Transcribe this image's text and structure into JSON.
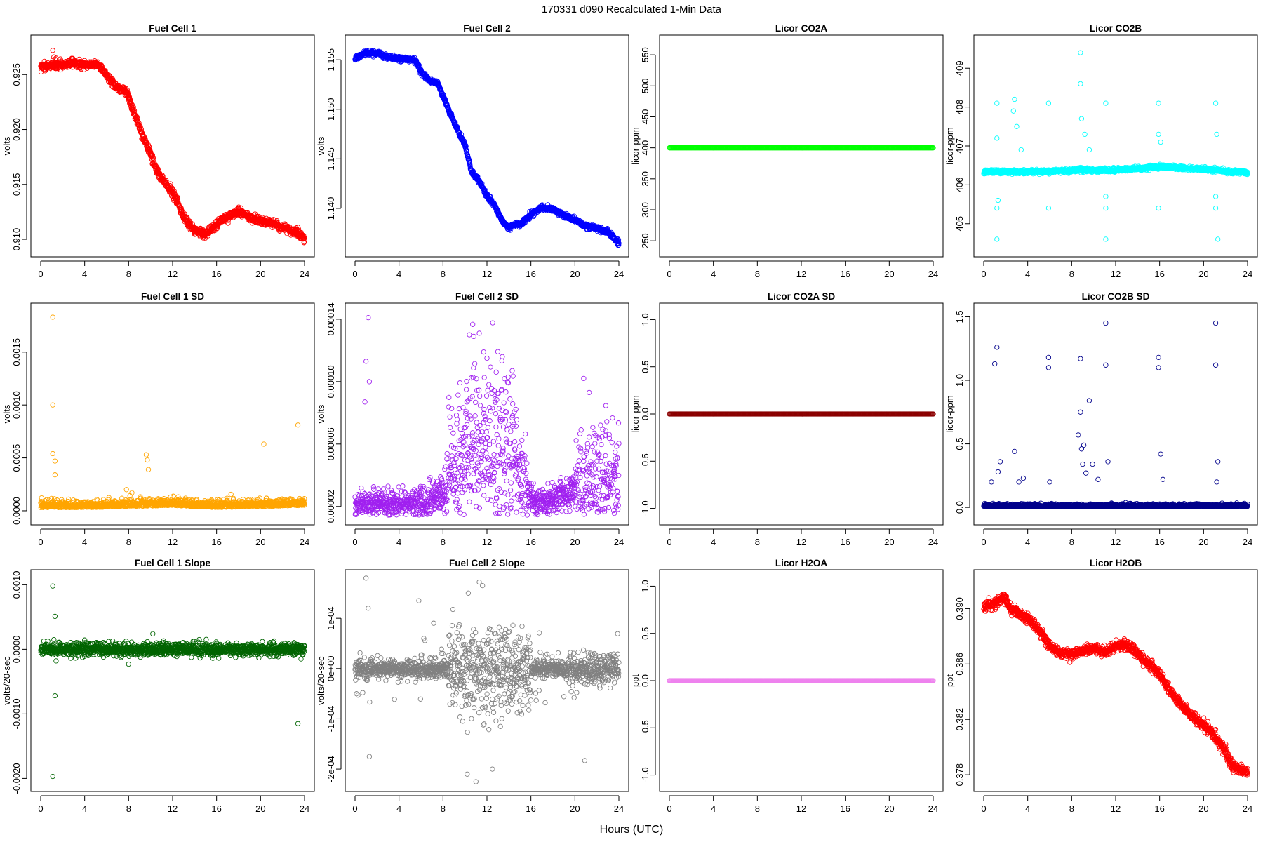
{
  "figure": {
    "title": "170331    d090    Recalculated 1-Min Data",
    "xlabel": "Hours (UTC)"
  },
  "chart_data": [
    {
      "id": "fc1",
      "type": "scatter",
      "title": "Fuel Cell 1",
      "ylabel": "volts",
      "color": "#ff0000",
      "xlim": [
        0,
        24
      ],
      "xticks": [
        0,
        4,
        8,
        12,
        16,
        20,
        24
      ],
      "xtick_labels": [
        "0",
        "4",
        "8",
        "12",
        "16",
        "20",
        "24"
      ],
      "ylim": [
        0.9093,
        0.9277
      ],
      "yticks": [
        0.91,
        0.915,
        0.92,
        0.925
      ],
      "ytick_labels": [
        "0.910",
        "0.915",
        "0.920",
        "0.925"
      ],
      "series": [
        {
          "name": "Fuel Cell 1",
          "x": [
            0,
            2,
            3,
            4,
            5.3,
            6,
            7,
            7.8,
            8.5,
            9.3,
            10,
            10.6,
            11.5,
            12.3,
            13,
            14,
            15,
            16.5,
            18,
            19.5,
            21,
            22.5,
            23.5,
            24
          ],
          "y": [
            0.9257,
            0.9259,
            0.9261,
            0.9259,
            0.9259,
            0.9249,
            0.9238,
            0.9235,
            0.9215,
            0.9193,
            0.9178,
            0.9161,
            0.9149,
            0.9138,
            0.912,
            0.9108,
            0.9105,
            0.9118,
            0.9125,
            0.9118,
            0.9115,
            0.9109,
            0.9105,
            0.9099
          ]
        }
      ],
      "outliers": {
        "x": [
          1.1,
          1.2,
          1.3,
          1.1,
          1.4,
          23.4
        ],
        "y": [
          0.9272,
          0.9266,
          0.9264,
          0.9263,
          0.9265,
          0.9111
        ]
      }
    },
    {
      "id": "fc2",
      "type": "scatter",
      "title": "Fuel Cell 2",
      "ylabel": "volts",
      "color": "#0000ff",
      "xlim": [
        0,
        24
      ],
      "xticks": [
        0,
        4,
        8,
        12,
        16,
        20,
        24
      ],
      "xtick_labels": [
        "0",
        "4",
        "8",
        "12",
        "16",
        "20",
        "24"
      ],
      "ylim": [
        1.1361,
        1.1565
      ],
      "yticks": [
        1.14,
        1.145,
        1.15,
        1.155
      ],
      "ytick_labels": [
        "1.140",
        "1.145",
        "1.150",
        "1.155"
      ],
      "series": [
        {
          "name": "Fuel Cell 2",
          "x": [
            0,
            1,
            2,
            3,
            4,
            5,
            5.5,
            6,
            6.8,
            7.5,
            8.5,
            9.3,
            10,
            10.6,
            11.3,
            12,
            12.7,
            13.5,
            14,
            14.5,
            15,
            16,
            17,
            18,
            19,
            20,
            21,
            22,
            23,
            24
          ],
          "y": [
            1.1551,
            1.1557,
            1.1556,
            1.1553,
            1.1551,
            1.155,
            1.1549,
            1.1538,
            1.1529,
            1.1527,
            1.15,
            1.148,
            1.1464,
            1.1437,
            1.1427,
            1.1413,
            1.1403,
            1.1385,
            1.138,
            1.1384,
            1.1383,
            1.1394,
            1.1401,
            1.1399,
            1.1393,
            1.1388,
            1.1382,
            1.138,
            1.1376,
            1.1365
          ]
        }
      ],
      "outliers": {
        "x": [],
        "y": []
      }
    },
    {
      "id": "co2a",
      "type": "scatter",
      "title": "Licor CO2A",
      "ylabel": "licor-ppm",
      "color": "#00ff00",
      "xlim": [
        0,
        24
      ],
      "xticks": [
        0,
        4,
        8,
        12,
        16,
        20,
        24
      ],
      "xtick_labels": [
        "0",
        "4",
        "8",
        "12",
        "16",
        "20",
        "24"
      ],
      "ylim": [
        240,
        566
      ],
      "yticks": [
        250,
        300,
        350,
        400,
        450,
        500,
        550
      ],
      "ytick_labels": [
        "250",
        "300",
        "350",
        "400",
        "450",
        "500",
        "550"
      ],
      "series": [
        {
          "name": "Licor CO2A",
          "x": [
            0,
            24
          ],
          "y": [
            400,
            400
          ]
        }
      ],
      "outliers": {
        "x": [],
        "y": []
      }
    },
    {
      "id": "co2b",
      "type": "scatter",
      "title": "Licor CO2B",
      "ylabel": "licor-ppm",
      "color": "#00ffff",
      "xlim": [
        0,
        24
      ],
      "xticks": [
        0,
        4,
        8,
        12,
        16,
        20,
        24
      ],
      "xtick_labels": [
        "0",
        "4",
        "8",
        "12",
        "16",
        "20",
        "24"
      ],
      "ylim": [
        404.4,
        409.6
      ],
      "yticks": [
        405,
        406,
        407,
        408,
        409
      ],
      "ytick_labels": [
        "405",
        "406",
        "407",
        "408",
        "409"
      ],
      "series": [
        {
          "name": "Licor CO2B",
          "x": [
            0,
            2,
            4,
            6,
            8,
            9,
            10,
            12,
            14,
            16,
            18,
            20,
            22,
            24
          ],
          "y": [
            406.33,
            406.34,
            406.33,
            406.35,
            406.38,
            406.4,
            406.37,
            406.38,
            406.42,
            406.47,
            406.43,
            406.4,
            406.35,
            406.32
          ]
        }
      ],
      "outliers": {
        "x": [
          1.2,
          1.2,
          1.2,
          1.2,
          1.3,
          2.7,
          2.8,
          3.0,
          3.4,
          5.9,
          5.9,
          8.8,
          8.8,
          8.9,
          9.2,
          9.6,
          11.1,
          11.1,
          11.1,
          11.1,
          15.9,
          15.9,
          15.9,
          16.1,
          21.1,
          21.1,
          21.1,
          21.2,
          21.3
        ],
        "y": [
          408.1,
          405.4,
          404.6,
          407.2,
          405.6,
          407.9,
          408.2,
          407.5,
          406.9,
          408.1,
          405.4,
          409.4,
          408.6,
          407.7,
          407.3,
          406.9,
          408.1,
          405.4,
          404.6,
          405.7,
          408.1,
          405.4,
          407.3,
          407.1,
          408.1,
          405.4,
          405.7,
          407.3,
          404.6
        ]
      }
    },
    {
      "id": "fc1sd",
      "type": "scatter",
      "title": "Fuel Cell 1 SD",
      "ylabel": "volts",
      "color": "#ffa500",
      "xlim": [
        0,
        24
      ],
      "xticks": [
        0,
        4,
        8,
        12,
        16,
        20,
        24
      ],
      "xtick_labels": [
        "0",
        "4",
        "8",
        "12",
        "16",
        "20",
        "24"
      ],
      "ylim": [
        -4e-05,
        0.00187
      ],
      "yticks": [
        0.0,
        0.0005,
        0.001,
        0.0015
      ],
      "ytick_labels": [
        "0.0000",
        "0.0005",
        "0.0010",
        "0.0015"
      ],
      "series": [
        {
          "name": "Fuel Cell 1 SD",
          "x": [
            0,
            4,
            8,
            12,
            16,
            20,
            24
          ],
          "y": [
            3e-05,
            3e-05,
            4e-05,
            5e-05,
            3e-05,
            4e-05,
            5e-05
          ]
        }
      ],
      "outliers": {
        "x": [
          1.1,
          1.1,
          1.1,
          1.3,
          1.3,
          9.6,
          9.7,
          9.8,
          20.3,
          23.4,
          7.8,
          8.3
        ],
        "y": [
          0.00183,
          0.001,
          0.00054,
          0.00047,
          0.00034,
          0.00053,
          0.00048,
          0.00039,
          0.00063,
          0.00081,
          0.0002,
          0.00017
        ]
      }
    },
    {
      "id": "fc2sd",
      "type": "scatter",
      "title": "Fuel Cell 2 SD",
      "ylabel": "volts",
      "color": "#a020f0",
      "xlim": [
        0,
        24
      ],
      "xticks": [
        0,
        4,
        8,
        12,
        16,
        20,
        24
      ],
      "xtick_labels": [
        "0",
        "4",
        "8",
        "12",
        "16",
        "20",
        "24"
      ],
      "ylim": [
        1.45e-05,
        0.000144
      ],
      "yticks": [
        2e-05,
        6e-05,
        0.0001,
        0.00014
      ],
      "ytick_labels": [
        "0.00002",
        "0.00006",
        "0.00010",
        "0.00014"
      ],
      "series": [
        {
          "name": "Fuel Cell 2 SD",
          "x": [
            0,
            2,
            4,
            6,
            7,
            8,
            9,
            10,
            11,
            12,
            13,
            14,
            15,
            16,
            17,
            18,
            19,
            20,
            21,
            22,
            23,
            24
          ],
          "y": [
            2.1e-05,
            2.1e-05,
            2.1e-05,
            2.3e-05,
            2.5e-05,
            2.8e-05,
            4e-05,
            5e-05,
            5.8e-05,
            5.5e-05,
            5.4e-05,
            5e-05,
            4.2e-05,
            2.4e-05,
            2.2e-05,
            2.5e-05,
            2.8e-05,
            3e-05,
            3.2e-05,
            3.5e-05,
            3.7e-05,
            3.5e-05
          ]
        }
      ],
      "outliers": {
        "x": [
          1.2,
          1.0,
          1.3,
          0.9,
          11.3,
          10.4,
          10.8,
          11.7,
          12.0,
          13.4,
          14.3,
          20.8,
          21.3
        ],
        "y": [
          0.000141,
          0.000113,
          0.0001,
          8.7e-05,
          0.000131,
          0.00013,
          0.000129,
          0.000119,
          0.000115,
          0.000116,
          0.000107,
          0.000102,
          9.3e-05
        ]
      }
    },
    {
      "id": "co2asd",
      "type": "scatter",
      "title": "Licor CO2A SD",
      "ylabel": "licor-ppm",
      "color": "#8b0000",
      "xlim": [
        0,
        24
      ],
      "xticks": [
        0,
        4,
        8,
        12,
        16,
        20,
        24
      ],
      "xtick_labels": [
        "0",
        "4",
        "8",
        "12",
        "16",
        "20",
        "24"
      ],
      "ylim": [
        -1.07,
        1.07
      ],
      "yticks": [
        -1.0,
        -0.5,
        0.0,
        0.5,
        1.0
      ],
      "ytick_labels": [
        "-1.0",
        "-0.5",
        "0.0",
        "0.5",
        "1.0"
      ],
      "series": [
        {
          "name": "Licor CO2A SD",
          "x": [
            0,
            24
          ],
          "y": [
            0,
            0
          ]
        }
      ],
      "outliers": {
        "x": [],
        "y": []
      }
    },
    {
      "id": "co2bsd",
      "type": "scatter",
      "title": "Licor CO2B SD",
      "ylabel": "licor-ppm",
      "color": "#00008b",
      "xlim": [
        0,
        24
      ],
      "xticks": [
        0,
        4,
        8,
        12,
        16,
        20,
        24
      ],
      "xtick_labels": [
        "0",
        "4",
        "8",
        "12",
        "16",
        "20",
        "24"
      ],
      "ylim": [
        -0.06,
        1.53
      ],
      "yticks": [
        0.0,
        0.5,
        1.0,
        1.5
      ],
      "ytick_labels": [
        "0.0",
        "0.5",
        "1.0",
        "1.5"
      ],
      "series": [
        {
          "name": "Licor CO2B SD",
          "x": [
            0,
            24
          ],
          "y": [
            0.005,
            0.005
          ]
        }
      ],
      "outliers": {
        "x": [
          1.2,
          1.0,
          1.5,
          1.3,
          2.8,
          3.2,
          3.6,
          5.9,
          5.9,
          6.0,
          8.8,
          8.8,
          9.1,
          9.6,
          9.9,
          10.4,
          11.1,
          11.1,
          11.3,
          15.9,
          15.9,
          16.1,
          16.3,
          21.1,
          21.1,
          21.3,
          21.2,
          0.7,
          8.6,
          8.9,
          9.0,
          9.3
        ],
        "y": [
          1.26,
          1.13,
          0.36,
          0.28,
          0.44,
          0.2,
          0.23,
          1.18,
          1.1,
          0.2,
          1.17,
          0.75,
          0.49,
          0.84,
          0.34,
          0.22,
          1.45,
          1.12,
          0.36,
          1.18,
          1.1,
          0.42,
          0.22,
          1.45,
          1.12,
          0.36,
          0.2,
          0.2,
          0.57,
          0.46,
          0.34,
          0.27
        ]
      }
    },
    {
      "id": "fc1slope",
      "type": "scatter",
      "title": "Fuel Cell 1 Slope",
      "ylabel": "volts/20-sec",
      "color": "#006400",
      "xlim": [
        0,
        24
      ],
      "xticks": [
        0,
        4,
        8,
        12,
        16,
        20,
        24
      ],
      "xtick_labels": [
        "0",
        "4",
        "8",
        "12",
        "16",
        "20",
        "24"
      ],
      "ylim": [
        -0.00205,
        0.00108
      ],
      "yticks": [
        -0.002,
        -0.001,
        0.0,
        0.001
      ],
      "ytick_labels": [
        "-0.0020",
        "-0.0010",
        "0.0000",
        "0.0010"
      ],
      "series": [
        {
          "name": "Fuel Cell 1 Slope",
          "x": [
            0,
            24
          ],
          "y": [
            0,
            0
          ]
        }
      ],
      "outliers": {
        "x": [
          1.1,
          1.3,
          1.3,
          1.1,
          23.4,
          8.0,
          10.2,
          1.2,
          1.4
        ],
        "y": [
          0.00098,
          0.00051,
          -0.00072,
          -0.00197,
          -0.00115,
          -0.00023,
          0.00024,
          0.00015,
          -0.00018
        ]
      }
    },
    {
      "id": "fc2slope",
      "type": "scatter",
      "title": "Fuel Cell 2 Slope",
      "ylabel": "volts/20-sec",
      "color": "#808080",
      "xlim": [
        0,
        24
      ],
      "xticks": [
        0,
        4,
        8,
        12,
        16,
        20,
        24
      ],
      "xtick_labels": [
        "0",
        "4",
        "8",
        "12",
        "16",
        "20",
        "24"
      ],
      "ylim": [
        -0.000225,
        0.000177
      ],
      "yticks": [
        -0.0002,
        -0.0001,
        0.0,
        0.0001
      ],
      "ytick_labels": [
        "-2e-04",
        "-1e-04",
        "0e+00",
        "1e-04"
      ],
      "series": [
        {
          "name": "Fuel Cell 2 Slope",
          "x": [
            0,
            4,
            8,
            10,
            12,
            14,
            16,
            18,
            20,
            22,
            24
          ],
          "y": [
            0,
            0,
            0,
            0,
            0,
            0,
            0,
            0,
            0,
            0,
            0
          ]
        }
      ],
      "outliers": {
        "x": [
          1.0,
          1.2,
          11.3,
          11.6,
          10.3,
          10.2,
          12.5,
          11.0,
          20.9,
          5.8,
          1.3,
          0.7
        ],
        "y": [
          0.00018,
          0.00012,
          0.000172,
          0.000165,
          0.00015,
          -0.00021,
          -0.0002,
          -0.000225,
          -0.000183,
          0.000135,
          -0.000175,
          -4.8e-05
        ]
      }
    },
    {
      "id": "h2oa",
      "type": "scatter",
      "title": "Licor H2OA",
      "ylabel": "ppt",
      "color": "#ee82ee",
      "xlim": [
        0,
        24
      ],
      "xticks": [
        0,
        4,
        8,
        12,
        16,
        20,
        24
      ],
      "xtick_labels": [
        "0",
        "4",
        "8",
        "12",
        "16",
        "20",
        "24"
      ],
      "ylim": [
        -1.07,
        1.07
      ],
      "yticks": [
        -1.0,
        -0.5,
        0.0,
        0.5,
        1.0
      ],
      "ytick_labels": [
        "-1.0",
        "-0.5",
        "0.0",
        "0.5",
        "1.0"
      ],
      "series": [
        {
          "name": "Licor H2OA",
          "x": [
            0,
            24
          ],
          "y": [
            0,
            0
          ]
        }
      ],
      "outliers": {
        "x": [],
        "y": []
      }
    },
    {
      "id": "h2ob",
      "type": "scatter",
      "title": "Licor H2OB",
      "ylabel": "ppt",
      "color": "#ff0000",
      "xlim": [
        0,
        24
      ],
      "xticks": [
        0,
        4,
        8,
        12,
        16,
        20,
        24
      ],
      "xtick_labels": [
        "0",
        "4",
        "8",
        "12",
        "16",
        "20",
        "24"
      ],
      "ylim": [
        0.3775,
        0.3921
      ],
      "yticks": [
        0.378,
        0.382,
        0.386,
        0.39
      ],
      "ytick_labels": [
        "0.378",
        "0.382",
        "0.386",
        "0.390"
      ],
      "series": [
        {
          "name": "Licor H2OB",
          "x": [
            0,
            1,
            1.8,
            2.5,
            3,
            4,
            5,
            6,
            7,
            8,
            9,
            10,
            11,
            12,
            13,
            14,
            15,
            16,
            17,
            18,
            19,
            20,
            21,
            22,
            22.5,
            23,
            24
          ],
          "y": [
            0.3901,
            0.3904,
            0.3909,
            0.3899,
            0.3898,
            0.3893,
            0.3885,
            0.3873,
            0.3867,
            0.3867,
            0.387,
            0.3872,
            0.3868,
            0.3873,
            0.3874,
            0.3868,
            0.386,
            0.3853,
            0.384,
            0.383,
            0.3822,
            0.3816,
            0.3808,
            0.3797,
            0.3787,
            0.3785,
            0.3781
          ]
        }
      ],
      "outliers": {
        "x": [],
        "y": []
      }
    }
  ]
}
